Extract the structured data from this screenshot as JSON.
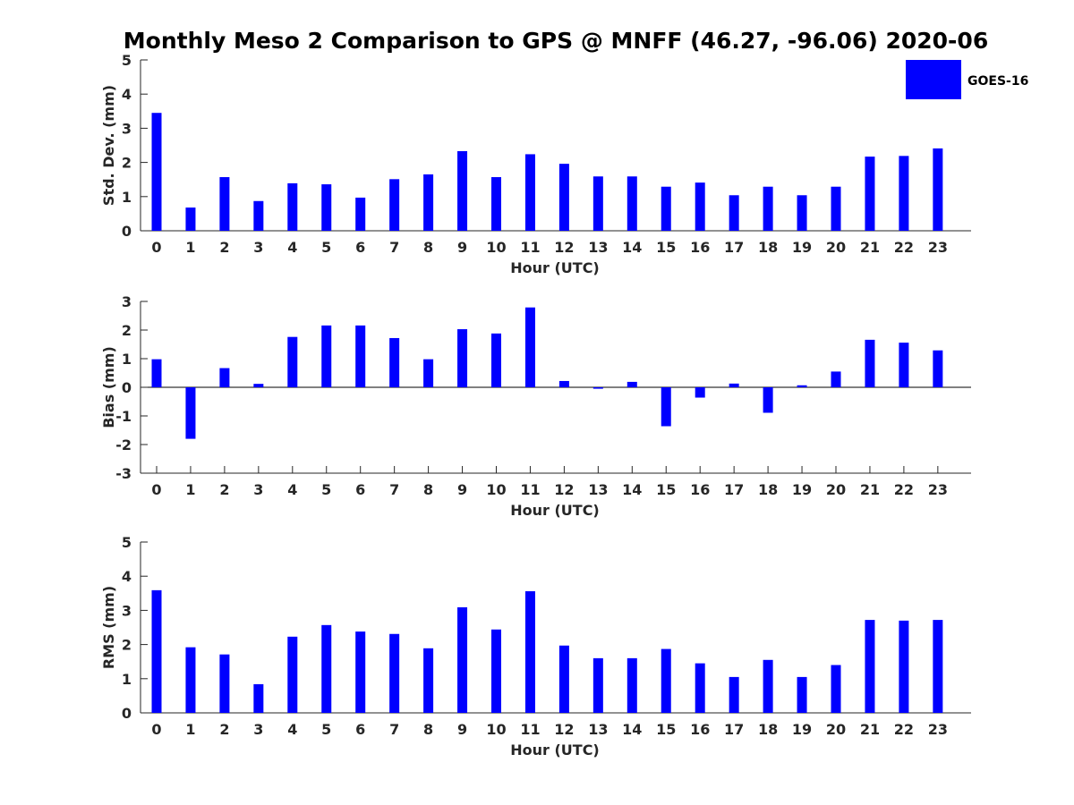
{
  "chart_data": {
    "type": "bar",
    "title": "Monthly Meso 2 Comparison to GPS @ MNFF (46.27, -96.06) 2020-06",
    "bar_color": "#0000ff",
    "legend": {
      "label": "GOES-16",
      "placement": "top-right"
    },
    "panels": [
      {
        "key": "std",
        "xlabel": "Hour (UTC)",
        "ylabel": "Std. Dev. (mm)",
        "ylim": [
          0,
          5
        ],
        "yticks": [
          0,
          1,
          2,
          3,
          4,
          5
        ],
        "categories": [
          "0",
          "1",
          "2",
          "3",
          "4",
          "5",
          "6",
          "7",
          "8",
          "9",
          "10",
          "11",
          "12",
          "13",
          "14",
          "15",
          "16",
          "17",
          "18",
          "19",
          "20",
          "21",
          "22",
          "23"
        ],
        "series": [
          {
            "name": "GOES-16",
            "values": [
              3.45,
              0.68,
              1.57,
              0.87,
              1.39,
              1.36,
              0.97,
              1.51,
              1.65,
              2.33,
              1.57,
              2.24,
              1.96,
              1.59,
              1.59,
              1.29,
              1.41,
              1.04,
              1.29,
              1.04,
              1.29,
              2.17,
              2.19,
              2.41
            ]
          }
        ]
      },
      {
        "key": "bias",
        "xlabel": "Hour (UTC)",
        "ylabel": "Bias (mm)",
        "ylim": [
          -3,
          3
        ],
        "yticks": [
          -3,
          -2,
          -1,
          0,
          1,
          2,
          3
        ],
        "categories": [
          "0",
          "1",
          "2",
          "3",
          "4",
          "5",
          "6",
          "7",
          "8",
          "9",
          "10",
          "11",
          "12",
          "13",
          "14",
          "15",
          "16",
          "17",
          "18",
          "19",
          "20",
          "21",
          "22",
          "23"
        ],
        "series": [
          {
            "name": "GOES-16",
            "values": [
              0.98,
              -1.8,
              0.67,
              0.12,
              1.76,
              2.16,
              2.16,
              1.72,
              0.98,
              2.03,
              1.88,
              2.79,
              0.22,
              -0.05,
              0.19,
              -1.36,
              -0.36,
              0.13,
              -0.89,
              0.07,
              0.55,
              1.66,
              1.56,
              1.29
            ]
          }
        ]
      },
      {
        "key": "rms",
        "xlabel": "Hour (UTC)",
        "ylabel": "RMS (mm)",
        "ylim": [
          0,
          5
        ],
        "yticks": [
          0,
          1,
          2,
          3,
          4,
          5
        ],
        "categories": [
          "0",
          "1",
          "2",
          "3",
          "4",
          "5",
          "6",
          "7",
          "8",
          "9",
          "10",
          "11",
          "12",
          "13",
          "14",
          "15",
          "16",
          "17",
          "18",
          "19",
          "20",
          "21",
          "22",
          "23"
        ],
        "series": [
          {
            "name": "GOES-16",
            "values": [
              3.59,
              1.92,
              1.71,
              0.84,
              2.23,
              2.57,
              2.38,
              2.31,
              1.89,
              3.09,
              2.44,
              3.56,
              1.97,
              1.6,
              1.6,
              1.87,
              1.45,
              1.05,
              1.55,
              1.05,
              1.4,
              2.72,
              2.7,
              2.72
            ]
          }
        ]
      }
    ]
  }
}
